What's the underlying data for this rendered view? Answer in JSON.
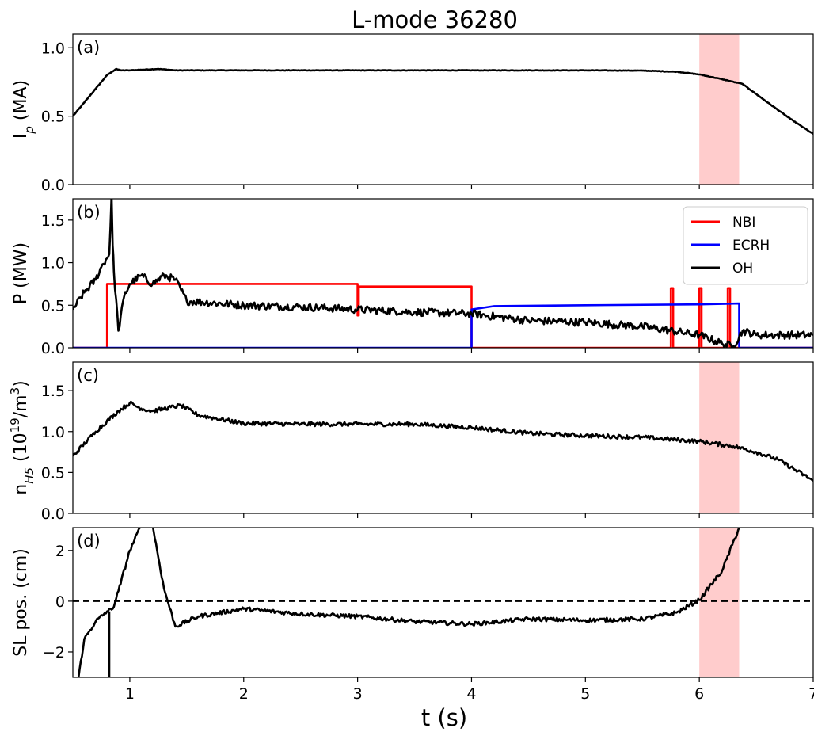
{
  "chart_data": {
    "type": "line",
    "title": "L-mode 36280",
    "xlabel": "t (s)",
    "xlim": [
      0.5,
      7.0
    ],
    "xticks": [
      1,
      2,
      3,
      4,
      5,
      6,
      7
    ],
    "shaded_interval": {
      "x0": 6.0,
      "x1": 6.35,
      "color": "#ffcccc"
    },
    "panels": [
      {
        "label": "(a)",
        "ylabel_main": "I",
        "ylabel_sub": "p",
        "ylabel_rest": " (MA)",
        "ylim": [
          0.0,
          1.1
        ],
        "yticks": [
          0.0,
          0.5,
          1.0
        ],
        "ytick_labels": [
          "0.0",
          "0.5",
          "1.0"
        ],
        "shaded": true,
        "series": [
          {
            "color": "#000000",
            "noise": 0.002,
            "x": [
              0.5,
              0.6,
              0.7,
              0.8,
              0.88,
              0.92,
              1.0,
              1.25,
              1.4,
              2,
              3,
              4,
              5,
              5.5,
              5.8,
              6.0,
              6.2,
              6.38,
              6.6,
              6.8,
              7.0
            ],
            "y": [
              0.5,
              0.6,
              0.7,
              0.8,
              0.845,
              0.835,
              0.835,
              0.845,
              0.835,
              0.835,
              0.835,
              0.835,
              0.835,
              0.833,
              0.825,
              0.805,
              0.77,
              0.735,
              0.6,
              0.48,
              0.37
            ]
          }
        ]
      },
      {
        "label": "(b)",
        "ylabel_main": "P (MW)",
        "ylabel_sub": "",
        "ylabel_rest": "",
        "ylim": [
          0.0,
          1.75
        ],
        "yticks": [
          0.0,
          0.5,
          1.0,
          1.5
        ],
        "ytick_labels": [
          "0.0",
          "0.5",
          "1.0",
          "1.5"
        ],
        "shaded": false,
        "legend": [
          {
            "name": "NBI",
            "color": "#ff0000"
          },
          {
            "name": "ECRH",
            "color": "#0000ff"
          },
          {
            "name": "OH",
            "color": "#000000"
          }
        ],
        "series": [
          {
            "name": "NBI",
            "color": "#ff0000",
            "noise": 0,
            "x": [
              0.5,
              0.8,
              0.8,
              3.0,
              3.0,
              3.01,
              3.01,
              4.0,
              4.0,
              5.75,
              5.75,
              5.77,
              5.77,
              6.0,
              6.0,
              6.02,
              6.02,
              6.25,
              6.25,
              6.27,
              6.27,
              7.0
            ],
            "y": [
              0.0,
              0.0,
              0.75,
              0.75,
              0.38,
              0.38,
              0.72,
              0.72,
              0.0,
              0.0,
              0.7,
              0.7,
              0.0,
              0.0,
              0.7,
              0.7,
              0.0,
              0.0,
              0.7,
              0.7,
              0.0,
              0.0
            ]
          },
          {
            "name": "ECRH",
            "color": "#0000ff",
            "noise": 0,
            "x": [
              0.5,
              4.0,
              4.0,
              4.2,
              5.0,
              6.0,
              6.35,
              6.35,
              7.0
            ],
            "y": [
              0.0,
              0.0,
              0.45,
              0.49,
              0.5,
              0.51,
              0.52,
              0.0,
              0.0
            ]
          },
          {
            "name": "OH",
            "color": "#000000",
            "noise": 0.045,
            "x": [
              0.5,
              0.6,
              0.7,
              0.75,
              0.82,
              0.84,
              0.85,
              0.86,
              0.9,
              0.95,
              1.0,
              1.1,
              1.2,
              1.3,
              1.4,
              1.5,
              2.0,
              2.5,
              3.0,
              3.5,
              4.0,
              4.5,
              5.0,
              5.5,
              6.0,
              6.2,
              6.3,
              6.38,
              6.5,
              7.0
            ],
            "y": [
              0.45,
              0.65,
              0.8,
              0.95,
              1.1,
              1.8,
              1.2,
              0.9,
              0.2,
              0.6,
              0.75,
              0.85,
              0.75,
              0.85,
              0.8,
              0.55,
              0.5,
              0.48,
              0.45,
              0.42,
              0.4,
              0.32,
              0.3,
              0.25,
              0.15,
              0.05,
              0.02,
              0.2,
              0.15,
              0.15
            ]
          }
        ]
      },
      {
        "label": "(c)",
        "ylabel_main": "n",
        "ylabel_sub": "H5",
        "ylabel_rest": " (10",
        "ylabel_sup": "19",
        "ylabel_tail": "/m",
        "ylabel_sup2": "3",
        "ylabel_end": ")",
        "ylim": [
          0.0,
          1.85
        ],
        "yticks": [
          0.0,
          0.5,
          1.0,
          1.5
        ],
        "ytick_labels": [
          "0.0",
          "0.5",
          "1.0",
          "1.5"
        ],
        "shaded": true,
        "series": [
          {
            "color": "#000000",
            "noise": 0.025,
            "x": [
              0.5,
              0.7,
              0.9,
              1.0,
              1.1,
              1.2,
              1.3,
              1.45,
              1.6,
              2.0,
              2.5,
              3.0,
              3.5,
              4.0,
              4.5,
              5.0,
              5.5,
              6.0,
              6.3,
              6.5,
              6.7,
              7.0
            ],
            "y": [
              0.7,
              1.0,
              1.25,
              1.35,
              1.28,
              1.25,
              1.28,
              1.32,
              1.2,
              1.1,
              1.09,
              1.09,
              1.09,
              1.05,
              0.98,
              0.95,
              0.93,
              0.88,
              0.82,
              0.75,
              0.65,
              0.4
            ]
          }
        ]
      },
      {
        "label": "(d)",
        "ylabel_main": "SL pos. (cm)",
        "ylabel_sub": "",
        "ylabel_rest": "",
        "ylim": [
          -3.0,
          2.9
        ],
        "yticks": [
          -2,
          0,
          2
        ],
        "ytick_labels": [
          "−2",
          "0",
          "2"
        ],
        "shaded": true,
        "zero_line": true,
        "series": [
          {
            "color": "#000000",
            "noise": 0.08,
            "x": [
              0.55,
              0.6,
              0.7,
              0.8,
              0.85,
              0.9,
              1.0,
              1.1,
              1.2,
              1.3,
              1.4,
              1.6,
              2.0,
              2.5,
              3.0,
              3.5,
              4.0,
              4.5,
              5.0,
              5.5,
              5.8,
              6.0,
              6.2,
              6.35
            ],
            "y": [
              -3.0,
              -1.5,
              -0.8,
              -0.4,
              -0.3,
              0.4,
              2.0,
              3.0,
              3.0,
              0.5,
              -1.0,
              -0.6,
              -0.3,
              -0.5,
              -0.6,
              -0.8,
              -0.9,
              -0.7,
              -0.75,
              -0.7,
              -0.45,
              0.05,
              1.2,
              2.9
            ]
          },
          {
            "color": "#000000",
            "noise": 0,
            "x": [
              0.82,
              0.82
            ],
            "y": [
              -0.4,
              -3.0
            ]
          }
        ]
      }
    ]
  }
}
